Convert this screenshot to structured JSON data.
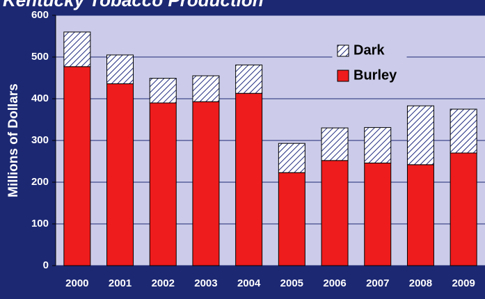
{
  "chart_data": {
    "type": "stacked_bar",
    "title": "Kentucky Tobacco Production",
    "y_label": "Millions of Dollars",
    "categories": [
      "2000",
      "2001",
      "2002",
      "2003",
      "2004",
      "2005",
      "2006",
      "2007",
      "2008",
      "2009"
    ],
    "series": [
      {
        "name": "Burley",
        "color": "#ee1c1c",
        "pattern": "solid",
        "values": [
          477,
          436,
          390,
          393,
          413,
          223,
          252,
          246,
          242,
          270
        ]
      },
      {
        "name": "Dark",
        "color": "#1f2a80",
        "pattern": "hatch",
        "values": [
          83,
          69,
          59,
          62,
          68,
          70,
          78,
          85,
          141,
          105
        ]
      }
    ],
    "ylim": [
      0,
      600
    ],
    "yticks": [
      0,
      100,
      200,
      300,
      400,
      500,
      600
    ],
    "grid": true
  }
}
